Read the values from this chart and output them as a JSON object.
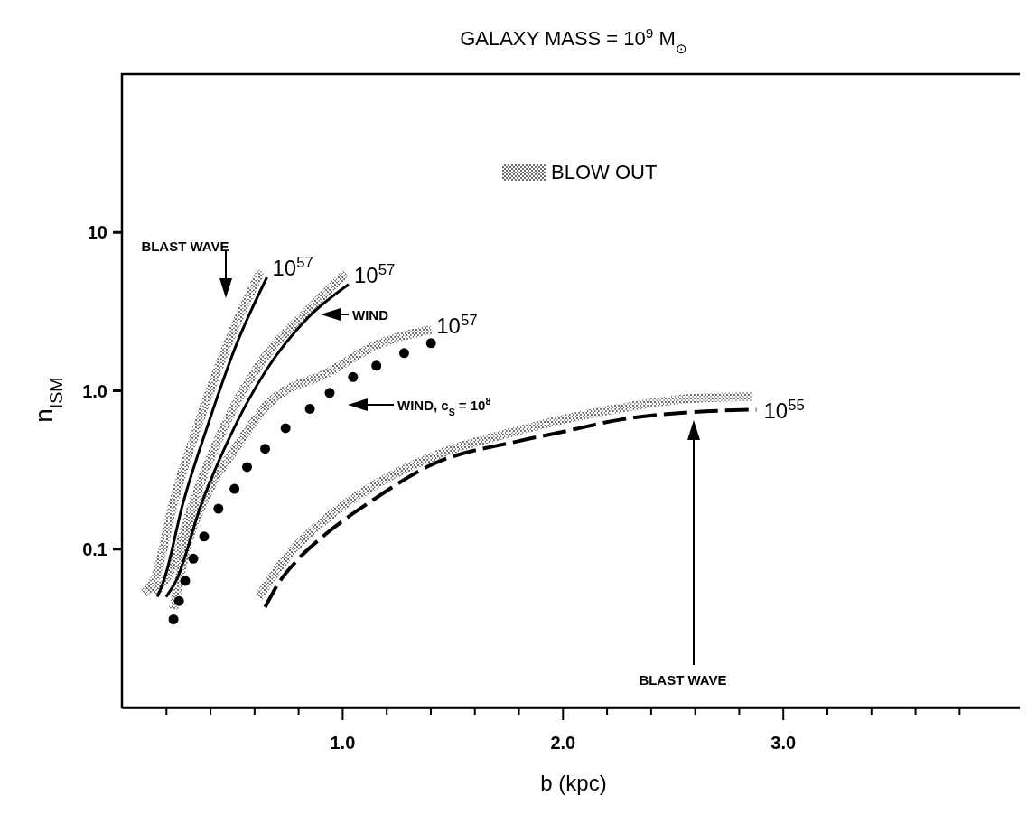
{
  "chart_data": {
    "type": "line",
    "title": "GALAXY MASS = 10$^{9}$ M$_{⊙}$",
    "xlabel": "b (kpc)",
    "ylabel": "n$_{ISM}$",
    "log": "y",
    "xlim": [
      0,
      4.1
    ],
    "ylim": [
      0.01,
      100
    ],
    "xticks": [
      {
        "value": 0.2,
        "label": null
      },
      {
        "value": 0.4,
        "label": null
      },
      {
        "value": 0.6,
        "label": null
      },
      {
        "value": 0.8,
        "label": null
      },
      {
        "value": 1,
        "label": "1.0"
      },
      {
        "value": 1.2,
        "label": null
      },
      {
        "value": 1.4,
        "label": null
      },
      {
        "value": 1.6,
        "label": null
      },
      {
        "value": 1.8,
        "label": null
      },
      {
        "value": 2,
        "label": "2.0"
      },
      {
        "value": 2.2,
        "label": null
      },
      {
        "value": 2.4,
        "label": null
      },
      {
        "value": 2.6,
        "label": null
      },
      {
        "value": 2.8,
        "label": null
      },
      {
        "value": 3,
        "label": "3.0"
      },
      {
        "value": 3.2,
        "label": null
      },
      {
        "value": 3.4,
        "label": null
      },
      {
        "value": 3.6,
        "label": null
      },
      {
        "value": 3.8,
        "label": null
      }
    ],
    "yticks": [
      0.1,
      {
        "value": 1,
        "label": "1.0"
      },
      10
    ],
    "grid": false,
    "legend": "top",
    "series": [
      {
        "name": "BLOW OUT",
        "line_style": "dotted",
        "color": "#6e6e6e",
        "x": [
          0.1,
          0.149,
          0.234,
          0.344,
          0.487,
          0.63
        ],
        "values": [
          0.053,
          0.065,
          0.197,
          0.6,
          2.08,
          5.7
        ]
      },
      {
        "line_style": "dotted",
        "color": "#6e6e6e",
        "x": [
          0.149,
          0.222,
          0.324,
          0.466,
          0.63,
          0.833,
          1.016
        ],
        "values": [
          0.053,
          0.074,
          0.197,
          0.6,
          1.5,
          3.08,
          5.5
        ]
      },
      {
        "line_style": "dotted",
        "color": "#6e6e6e",
        "x": [
          0.234,
          0.291,
          0.385,
          0.519,
          0.658,
          0.943,
          1.159,
          1.403
        ],
        "values": [
          0.042,
          0.1,
          0.22,
          0.44,
          0.81,
          1.32,
          1.95,
          2.43
        ]
      },
      {
        "line_style": "dotted",
        "color": "#6e6e6e",
        "x": [
          0.621,
          0.752,
          0.914,
          1.118,
          1.403,
          1.798,
          2.27,
          2.57,
          2.86
        ],
        "values": [
          0.05,
          0.09,
          0.15,
          0.24,
          0.38,
          0.56,
          0.78,
          0.89,
          0.92
        ]
      },
      {
        "color": "#000000",
        "line_style": "solid",
        "x": [
          0.161,
          0.193,
          0.275,
          0.385,
          0.519,
          0.658
        ],
        "values": [
          0.05,
          0.065,
          0.19,
          0.58,
          1.95,
          5.2
        ]
      },
      {
        "color": "#000000",
        "line_style": "solid",
        "x": [
          0.2,
          0.25,
          0.356,
          0.495,
          0.658,
          0.845,
          1.029
        ],
        "values": [
          0.05,
          0.065,
          0.185,
          0.53,
          1.37,
          2.9,
          4.7
        ]
      },
      {
        "type": "scatter",
        "color": "#000000",
        "marker": "circle",
        "x": [
          0.234,
          0.259,
          0.287,
          0.324,
          0.373,
          0.438,
          0.511,
          0.568,
          0.65,
          0.743,
          0.853,
          0.943,
          1.049,
          1.155,
          1.281,
          1.403
        ],
        "values": [
          0.036,
          0.047,
          0.063,
          0.087,
          0.12,
          0.18,
          0.24,
          0.33,
          0.43,
          0.58,
          0.77,
          0.97,
          1.22,
          1.44,
          1.73,
          2.0
        ]
      },
      {
        "color": "#000000",
        "line_style": "dashed",
        "x": [
          0.65,
          0.711,
          0.792,
          0.927,
          1.13,
          1.403,
          1.798,
          2.0,
          2.27,
          2.57,
          2.88
        ],
        "values": [
          0.043,
          0.061,
          0.084,
          0.125,
          0.2,
          0.34,
          0.48,
          0.55,
          0.66,
          0.73,
          0.76
        ]
      }
    ],
    "annotations": [
      "BLAST WAVE",
      {
        "text": "10$^{57}$",
        "x": 0.658,
        "y": 5.2
      },
      {
        "text": "10$^{57}$",
        "x": 1.029,
        "y": 4.7
      },
      "WIND",
      {
        "text": "10$^{57}$",
        "x": 1.403,
        "y": 2.43
      },
      "WIND, c$_{S}$ = 10$^{8}$",
      {
        "text": "10$^{55}$",
        "x": 2.88,
        "y": 0.76
      },
      "BLAST WAVE"
    ]
  }
}
